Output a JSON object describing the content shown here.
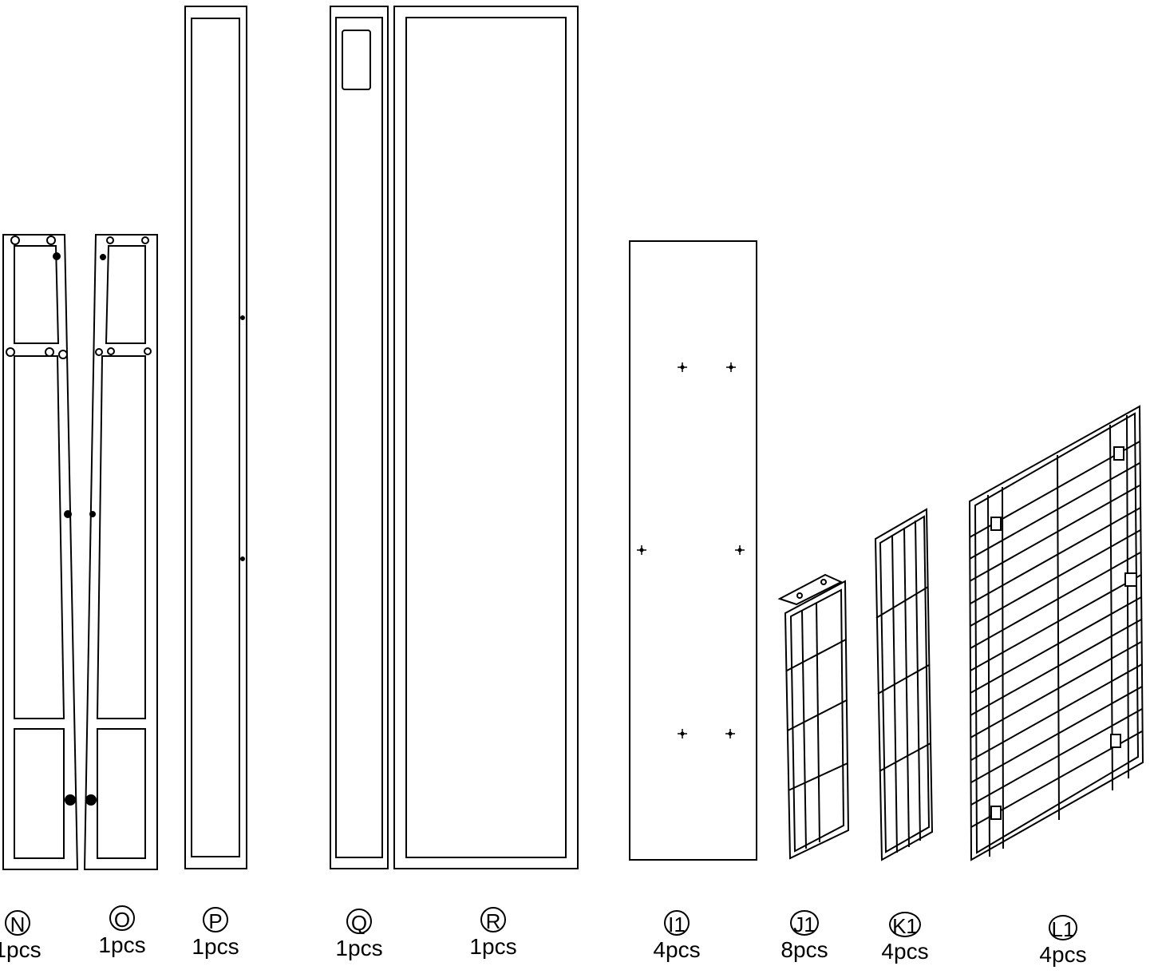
{
  "parts": [
    {
      "id": "N",
      "qty": "1pcs"
    },
    {
      "id": "O",
      "qty": "1pcs"
    },
    {
      "id": "P",
      "qty": "1pcs"
    },
    {
      "id": "Q",
      "qty": "1pcs"
    },
    {
      "id": "R",
      "qty": "1pcs"
    },
    {
      "id": "I1",
      "qty": "4pcs"
    },
    {
      "id": "J1",
      "qty": "8pcs"
    },
    {
      "id": "K1",
      "qty": "4pcs"
    },
    {
      "id": "L1",
      "qty": "4pcs"
    }
  ],
  "colors": {
    "line": "#000000",
    "background": "#ffffff"
  }
}
